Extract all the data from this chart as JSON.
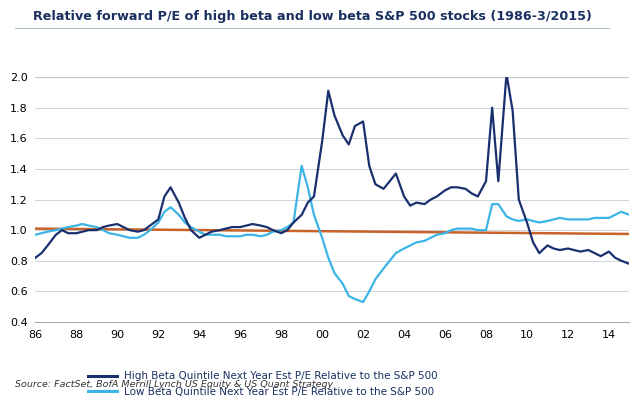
{
  "title": "Relative forward P/E of high beta and low beta S&P 500 stocks (1986-3/2015)",
  "source": "Source: FactSet, BofA Merrill Lynch US Equity & US Quant Strategy",
  "legend_high": "High Beta Quintile Next Year Est P/E Relative to the S&P 500",
  "legend_low": "Low Beta Quintile Next Year Est P/E Relative to the S&P 500",
  "color_high": "#1a2f6e",
  "color_low": "#3cb4e6",
  "color_baseline": "#c8622a",
  "ylim": [
    0.4,
    2.0
  ],
  "yticks": [
    0.4,
    0.6,
    0.8,
    1.0,
    1.2,
    1.4,
    1.6,
    1.8,
    2.0
  ],
  "xtick_labels": [
    "86",
    "88",
    "90",
    "92",
    "94",
    "96",
    "98",
    "00",
    "02",
    "04",
    "06",
    "08",
    "10",
    "12",
    "14"
  ],
  "background_color": "#ffffff",
  "grid_color": "#c0cdd8",
  "title_color": "#1a3060",
  "high_beta_x": [
    1986.0,
    1986.3,
    1986.6,
    1987.0,
    1987.3,
    1987.6,
    1988.0,
    1988.3,
    1988.6,
    1989.0,
    1989.3,
    1989.6,
    1990.0,
    1990.3,
    1990.6,
    1991.0,
    1991.3,
    1991.6,
    1992.0,
    1992.3,
    1992.6,
    1993.0,
    1993.3,
    1993.6,
    1994.0,
    1994.3,
    1994.6,
    1995.0,
    1995.3,
    1995.6,
    1996.0,
    1996.3,
    1996.6,
    1997.0,
    1997.3,
    1997.6,
    1998.0,
    1998.3,
    1998.6,
    1999.0,
    1999.3,
    1999.6,
    2000.0,
    2000.3,
    2000.6,
    2001.0,
    2001.3,
    2001.6,
    2002.0,
    2002.3,
    2002.6,
    2003.0,
    2003.3,
    2003.6,
    2004.0,
    2004.3,
    2004.6,
    2005.0,
    2005.3,
    2005.6,
    2006.0,
    2006.3,
    2006.6,
    2007.0,
    2007.3,
    2007.6,
    2008.0,
    2008.3,
    2008.6,
    2009.0,
    2009.3,
    2009.6,
    2010.0,
    2010.3,
    2010.6,
    2011.0,
    2011.3,
    2011.6,
    2012.0,
    2012.3,
    2012.6,
    2013.0,
    2013.3,
    2013.6,
    2014.0,
    2014.3,
    2014.6,
    2015.0
  ],
  "high_beta_y": [
    0.82,
    0.85,
    0.9,
    0.97,
    1.0,
    0.98,
    0.98,
    0.99,
    1.0,
    1.0,
    1.02,
    1.03,
    1.04,
    1.02,
    1.0,
    0.99,
    1.0,
    1.03,
    1.07,
    1.22,
    1.28,
    1.18,
    1.08,
    1.0,
    0.95,
    0.97,
    0.99,
    1.0,
    1.01,
    1.02,
    1.02,
    1.03,
    1.04,
    1.03,
    1.02,
    1.0,
    0.98,
    1.0,
    1.05,
    1.1,
    1.18,
    1.22,
    1.58,
    1.91,
    1.75,
    1.62,
    1.56,
    1.68,
    1.71,
    1.42,
    1.3,
    1.27,
    1.32,
    1.37,
    1.22,
    1.16,
    1.18,
    1.17,
    1.2,
    1.22,
    1.26,
    1.28,
    1.28,
    1.27,
    1.24,
    1.22,
    1.32,
    1.8,
    1.32,
    2.02,
    1.78,
    1.2,
    1.05,
    0.92,
    0.85,
    0.9,
    0.88,
    0.87,
    0.88,
    0.87,
    0.86,
    0.87,
    0.85,
    0.83,
    0.86,
    0.82,
    0.8,
    0.78
  ],
  "low_beta_x": [
    1986.0,
    1986.3,
    1986.6,
    1987.0,
    1987.3,
    1987.6,
    1988.0,
    1988.3,
    1988.6,
    1989.0,
    1989.3,
    1989.6,
    1990.0,
    1990.3,
    1990.6,
    1991.0,
    1991.3,
    1991.6,
    1992.0,
    1992.3,
    1992.6,
    1993.0,
    1993.3,
    1993.6,
    1994.0,
    1994.3,
    1994.6,
    1995.0,
    1995.3,
    1995.6,
    1996.0,
    1996.3,
    1996.6,
    1997.0,
    1997.3,
    1997.6,
    1998.0,
    1998.3,
    1998.6,
    1999.0,
    1999.3,
    1999.6,
    2000.0,
    2000.3,
    2000.6,
    2001.0,
    2001.3,
    2001.6,
    2002.0,
    2002.3,
    2002.6,
    2003.0,
    2003.3,
    2003.6,
    2004.0,
    2004.3,
    2004.6,
    2005.0,
    2005.3,
    2005.6,
    2006.0,
    2006.3,
    2006.6,
    2007.0,
    2007.3,
    2007.6,
    2008.0,
    2008.3,
    2008.6,
    2009.0,
    2009.3,
    2009.6,
    2010.0,
    2010.3,
    2010.6,
    2011.0,
    2011.3,
    2011.6,
    2012.0,
    2012.3,
    2012.6,
    2013.0,
    2013.3,
    2013.6,
    2014.0,
    2014.3,
    2014.6,
    2015.0
  ],
  "low_beta_y": [
    0.97,
    0.98,
    0.99,
    1.0,
    1.01,
    1.02,
    1.03,
    1.04,
    1.03,
    1.02,
    1.0,
    0.98,
    0.97,
    0.96,
    0.95,
    0.95,
    0.97,
    1.0,
    1.05,
    1.12,
    1.15,
    1.1,
    1.05,
    1.02,
    0.99,
    0.97,
    0.97,
    0.97,
    0.96,
    0.96,
    0.96,
    0.97,
    0.97,
    0.96,
    0.97,
    0.99,
    1.0,
    1.02,
    1.05,
    1.42,
    1.28,
    1.1,
    0.95,
    0.82,
    0.72,
    0.65,
    0.57,
    0.55,
    0.53,
    0.6,
    0.68,
    0.75,
    0.8,
    0.85,
    0.88,
    0.9,
    0.92,
    0.93,
    0.95,
    0.97,
    0.98,
    1.0,
    1.01,
    1.01,
    1.01,
    1.0,
    1.0,
    1.17,
    1.17,
    1.09,
    1.07,
    1.06,
    1.07,
    1.06,
    1.05,
    1.06,
    1.07,
    1.08,
    1.07,
    1.07,
    1.07,
    1.07,
    1.08,
    1.08,
    1.08,
    1.1,
    1.12,
    1.1
  ],
  "baseline_x": [
    1986.0,
    2015.0
  ],
  "baseline_y": [
    1.01,
    0.975
  ]
}
